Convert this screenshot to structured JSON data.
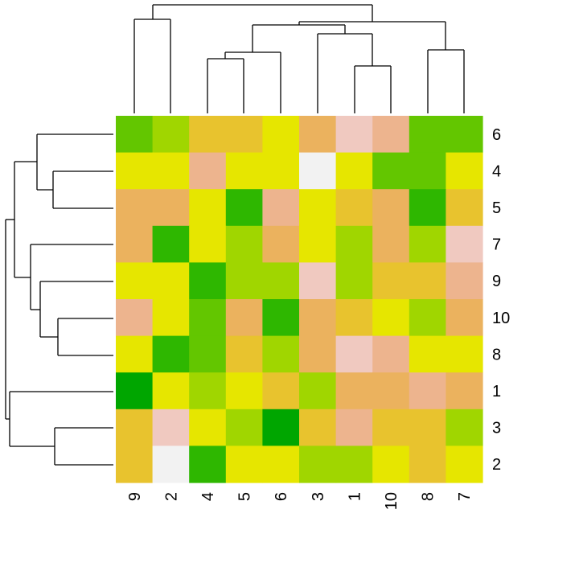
{
  "chart_data": {
    "type": "heatmap",
    "title": "",
    "xlabel": "",
    "ylabel": "",
    "column_labels": [
      "9",
      "2",
      "4",
      "5",
      "6",
      "3",
      "1",
      "10",
      "8",
      "7"
    ],
    "row_labels": [
      "6",
      "4",
      "5",
      "7",
      "9",
      "10",
      "8",
      "1",
      "3",
      "2"
    ],
    "values": [
      [
        2,
        3,
        5,
        5,
        4,
        6,
        8,
        7,
        2,
        2
      ],
      [
        4,
        4,
        7,
        4,
        4,
        9,
        4,
        2,
        2,
        4
      ],
      [
        6,
        6,
        4,
        1,
        7,
        4,
        5,
        6,
        1,
        5
      ],
      [
        6,
        1,
        4,
        3,
        6,
        4,
        3,
        6,
        3,
        8
      ],
      [
        4,
        4,
        1,
        3,
        3,
        8,
        3,
        5,
        5,
        7
      ],
      [
        7,
        4,
        2,
        6,
        1,
        6,
        5,
        4,
        3,
        6
      ],
      [
        4,
        1,
        2,
        5,
        3,
        6,
        8,
        7,
        4,
        4
      ],
      [
        0,
        4,
        3,
        4,
        5,
        3,
        6,
        6,
        7,
        6
      ],
      [
        5,
        8,
        4,
        3,
        0,
        5,
        7,
        5,
        5,
        3
      ],
      [
        5,
        9,
        1,
        4,
        4,
        3,
        3,
        4,
        5,
        4
      ]
    ],
    "color_scale": [
      "#00a600",
      "#2eb700",
      "#63c600",
      "#a0d600",
      "#e6e600",
      "#e8c32e",
      "#ebb25e",
      "#edb48e",
      "#f0c9c0",
      "#f2f2f2"
    ],
    "row_dendrogram": true,
    "column_dendrogram": true,
    "legend": false,
    "grid": false
  }
}
